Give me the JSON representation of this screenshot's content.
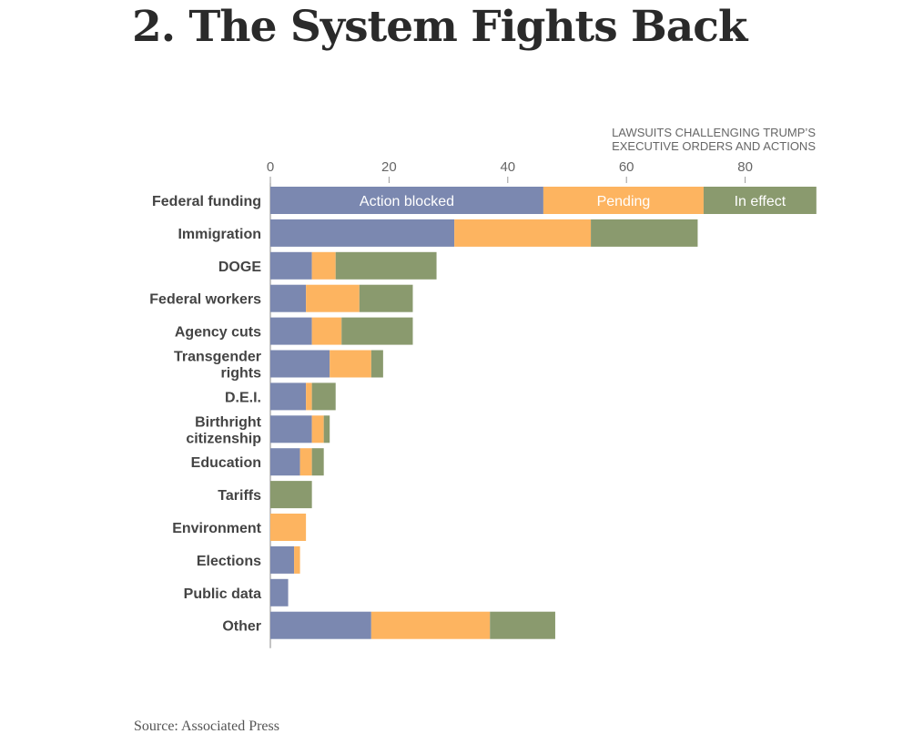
{
  "headline": "2. The System Fights Back",
  "source": "Source: Associated Press",
  "chart_data": {
    "type": "bar",
    "orientation": "horizontal",
    "stacked": true,
    "axis_title": [
      "LAWSUITS CHALLENGING TRUMP’S",
      "EXECUTIVE ORDERS AND ACTIONS"
    ],
    "xticks": [
      0,
      20,
      40,
      60,
      80
    ],
    "xlim": [
      0,
      92
    ],
    "categories": [
      [
        "Federal funding"
      ],
      [
        "Immigration"
      ],
      [
        "DOGE"
      ],
      [
        "Federal workers"
      ],
      [
        "Agency cuts"
      ],
      [
        "Transgender",
        "rights"
      ],
      [
        "D.E.I."
      ],
      [
        "Birthright",
        "citizenship"
      ],
      [
        "Education"
      ],
      [
        "Tariffs"
      ],
      [
        "Environment"
      ],
      [
        "Elections"
      ],
      [
        "Public data"
      ],
      [
        "Other"
      ]
    ],
    "series": [
      {
        "name": "Action blocked",
        "color": "#7b88b0",
        "label_color": "#ffffff",
        "values": [
          46,
          31,
          7,
          6,
          7,
          10,
          6,
          7,
          5,
          0,
          0,
          4,
          3,
          17
        ]
      },
      {
        "name": "Pending",
        "color": "#fdb460",
        "label_color": "#ffffff",
        "values": [
          27,
          23,
          4,
          9,
          5,
          7,
          1,
          2,
          2,
          0,
          6,
          1,
          0,
          20
        ]
      },
      {
        "name": "In effect",
        "color": "#8a9a6e",
        "label_color": "#ffffff",
        "values": [
          19,
          18,
          17,
          9,
          12,
          2,
          4,
          1,
          2,
          7,
          0,
          0,
          0,
          11
        ]
      }
    ],
    "legend": "inline labels on first bar",
    "grid": false
  }
}
